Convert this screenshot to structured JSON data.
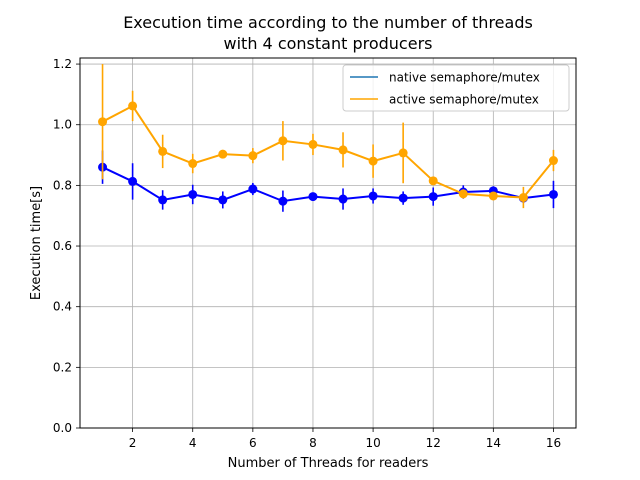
{
  "chart_data": {
    "type": "line",
    "title": [
      "Execution time according to the number of threads",
      "with 4 constant producers"
    ],
    "xlabel": "Number of Threads for readers",
    "ylabel": "Execution time[s]",
    "xlim": [
      0.25,
      16.75
    ],
    "ylim": [
      0.0,
      1.22
    ],
    "xticks": [
      2,
      4,
      6,
      8,
      10,
      12,
      14,
      16
    ],
    "yticks": [
      0.0,
      0.2,
      0.4,
      0.6,
      0.8,
      1.0,
      1.2
    ],
    "grid": true,
    "legend_position": "top-right",
    "x": [
      1,
      2,
      3,
      4,
      5,
      6,
      7,
      8,
      9,
      10,
      11,
      12,
      13,
      14,
      15,
      16
    ],
    "series": [
      {
        "name": "native semaphore/mutex",
        "legend_color": "#1f77b4",
        "color": "#0000ff",
        "values": [
          0.86,
          0.813,
          0.752,
          0.77,
          0.752,
          0.788,
          0.748,
          0.763,
          0.755,
          0.765,
          0.758,
          0.763,
          0.778,
          0.782,
          0.758,
          0.77
        ],
        "errors": [
          0.055,
          0.06,
          0.032,
          0.032,
          0.028,
          0.02,
          0.035,
          0.012,
          0.035,
          0.025,
          0.022,
          0.03,
          0.022,
          0.015,
          0.012,
          0.045
        ]
      },
      {
        "name": "active semaphore/mutex",
        "legend_color": "#ffa500",
        "color": "#ffa500",
        "values": [
          1.01,
          1.062,
          0.912,
          0.872,
          0.903,
          0.898,
          0.947,
          0.935,
          0.917,
          0.88,
          0.907,
          0.815,
          0.772,
          0.765,
          0.76,
          0.882
        ],
        "errors": [
          0.19,
          0.05,
          0.055,
          0.032,
          0.012,
          0.025,
          0.065,
          0.035,
          0.058,
          0.055,
          0.1,
          0.012,
          0.015,
          0.012,
          0.035,
          0.035
        ]
      }
    ]
  }
}
